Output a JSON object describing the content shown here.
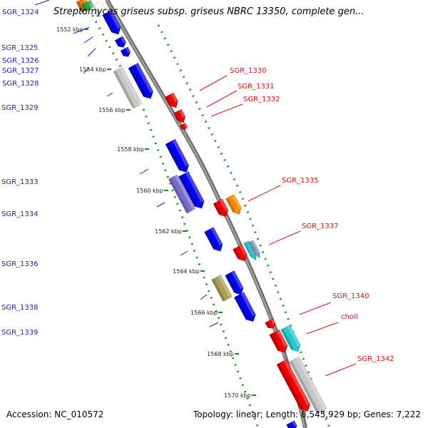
{
  "title": "Streptomyces griseus subsp. griseus NBRC 13350, complete gen...",
  "footer": {
    "accession": "Accession: NC_010572",
    "topology": "Topology: linear; Length: 8,545,929 bp; Genes: 7,222"
  },
  "scale_labels": [
    "1552 kbp",
    "1554 kbp",
    "1556 kbp",
    "1558 kbp",
    "1560 kbp",
    "1562 kbp",
    "1564 kbp",
    "1566 kbp",
    "1568 kbp",
    "1570 kbp"
  ],
  "left_genes": [
    "SGR_1324",
    "SGR_1325",
    "SGR_1326",
    "SGR_1327",
    "SGR_1328",
    "SGR_1329",
    "SGR_1333",
    "SGR_1334",
    "SGR_1336",
    "SGR_1338",
    "SGR_1339"
  ],
  "right_genes": [
    "SGR_1330",
    "SGR_1331",
    "SGR_1332",
    "SGR_1335",
    "SGR_1337",
    "SGR_1340",
    "cholI",
    "SGR_1342"
  ],
  "colors": {
    "backbone": "#8c8c8c",
    "dots": "#1f8a1f",
    "left_label": "#1a1acc",
    "right_label": "#dd1111",
    "blue": "#0000ee",
    "red": "#ee0000",
    "grey": "#c8c8c8",
    "purple": "#7a6acc",
    "orange": "#ff8800",
    "olive": "#aaa055",
    "cyan": "#22cccc"
  }
}
